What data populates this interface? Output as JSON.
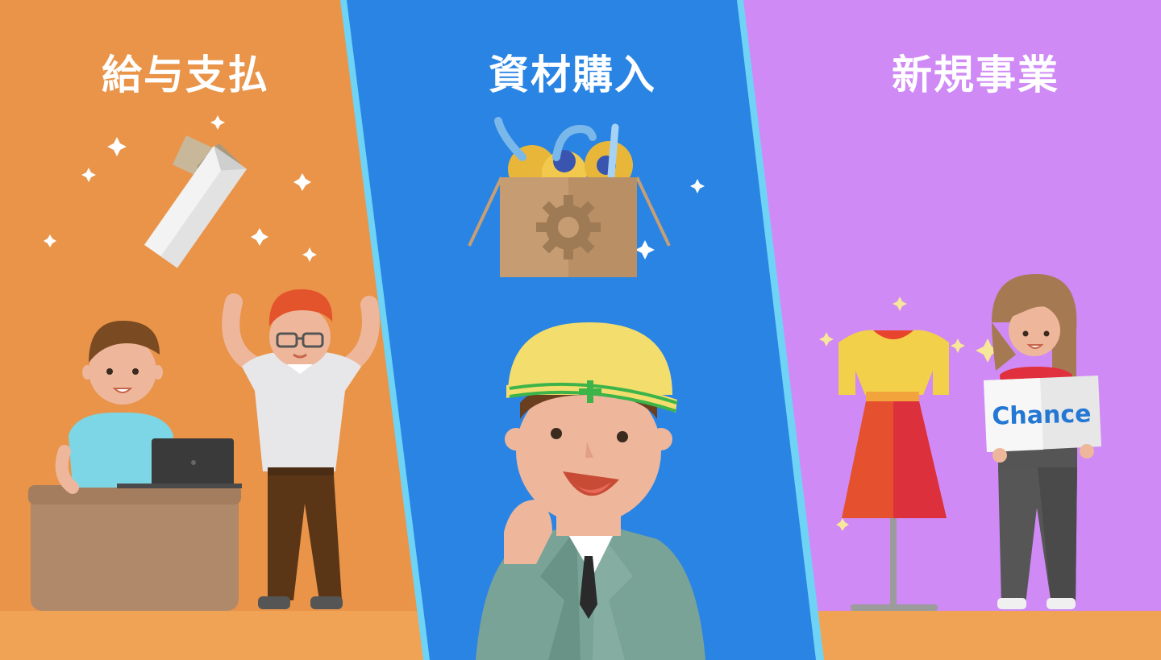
{
  "panels": {
    "left": {
      "title": "給与支払",
      "color": "#e99449"
    },
    "middle": {
      "title": "資材購入",
      "color": "#2a84e3"
    },
    "right": {
      "title": "新規事業",
      "color": "#cf8af5"
    }
  },
  "sign": {
    "text": "Chance"
  },
  "colors": {
    "divider": "#6fd3f5",
    "floor": "#f0a355"
  }
}
